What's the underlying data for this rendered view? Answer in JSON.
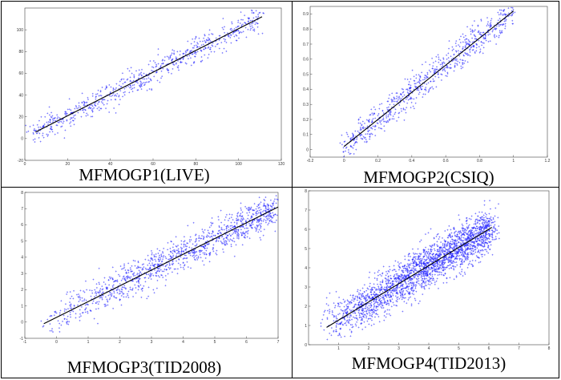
{
  "panels": [
    {
      "caption": "MFMOGP1(LIVE)",
      "chart_data": {
        "type": "scatter",
        "xlim": [
          0,
          120
        ],
        "ylim": [
          -20,
          120
        ],
        "xticks": [
          0,
          20,
          40,
          60,
          80,
          100,
          120
        ],
        "yticks": [
          -20,
          0,
          20,
          40,
          60,
          80,
          100
        ],
        "fit_line": [
          [
            5,
            6
          ],
          [
            111,
            112
          ]
        ],
        "point_count": 700,
        "scatter_spread": 6,
        "point_color": "#1f1fff",
        "line_color": "#000000"
      }
    },
    {
      "caption": "MFMOGP2(CSIQ)",
      "chart_data": {
        "type": "scatter",
        "xlim": [
          -0.2,
          1.2
        ],
        "ylim": [
          -0.05,
          0.95
        ],
        "xticks": [
          -0.2,
          0,
          0.2,
          0.4,
          0.6,
          0.8,
          1,
          1.2
        ],
        "yticks": [
          0,
          0.1,
          0.2,
          0.3,
          0.4,
          0.5,
          0.6,
          0.7,
          0.8,
          0.9
        ],
        "fit_line": [
          [
            0,
            0.02
          ],
          [
            1.0,
            0.92
          ]
        ],
        "point_count": 750,
        "scatter_spread": 0.05,
        "point_color": "#1f1fff",
        "line_color": "#000000"
      }
    },
    {
      "caption": "MFMOGP3(TID2008)",
      "chart_data": {
        "type": "scatter",
        "xlim": [
          -1,
          7
        ],
        "ylim": [
          -1,
          8
        ],
        "xticks": [
          -1,
          0,
          1,
          2,
          3,
          4,
          5,
          6,
          7
        ],
        "yticks": [
          -1,
          0,
          1,
          2,
          3,
          4,
          5,
          6,
          7,
          8
        ],
        "fit_line": [
          [
            -0.4,
            -0.1
          ],
          [
            7.0,
            7.1
          ]
        ],
        "point_count": 1200,
        "scatter_spread": 0.5,
        "point_color": "#1f1fff",
        "line_color": "#000000"
      }
    },
    {
      "caption": "MFMOGP4(TID2013)",
      "chart_data": {
        "type": "scatter",
        "xlim": [
          0,
          8
        ],
        "ylim": [
          0,
          8
        ],
        "xticks": [
          1,
          2,
          3,
          4,
          5,
          6,
          7,
          8
        ],
        "yticks": [
          0,
          1,
          2,
          3,
          4,
          5,
          6,
          7,
          8
        ],
        "fit_line": [
          [
            0.6,
            0.9
          ],
          [
            6.1,
            6.1
          ]
        ],
        "point_count": 2400,
        "scatter_spread": 0.55,
        "point_color": "#1f1fff",
        "line_color": "#000000"
      }
    }
  ]
}
